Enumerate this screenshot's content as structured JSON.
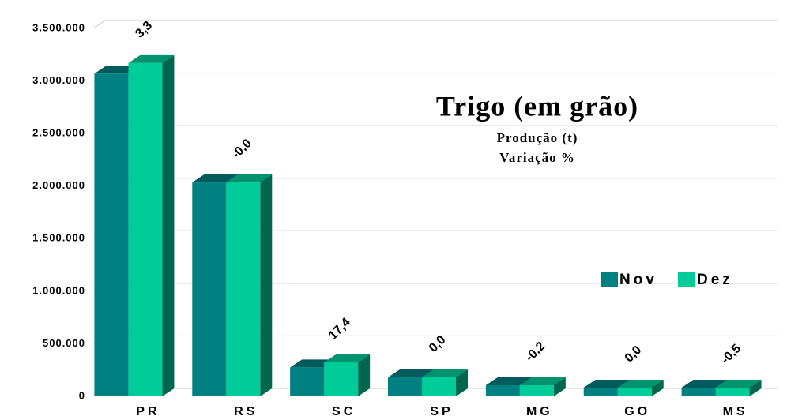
{
  "chart_data": {
    "type": "bar3d",
    "title": "Trigo (em grão)",
    "subtitle": [
      "Produção (t)",
      "Variação %"
    ],
    "categories": [
      "PR",
      "RS",
      "SC",
      "SP",
      "MG",
      "GO",
      "MS"
    ],
    "series": [
      {
        "name": "Nov",
        "color": "#008080",
        "values": [
          3070000,
          2035000,
          275000,
          180000,
          105000,
          83000,
          83000
        ]
      },
      {
        "name": "Dez",
        "color": "#00cc99",
        "values": [
          3170000,
          2035000,
          323000,
          180000,
          105000,
          83000,
          83000
        ]
      }
    ],
    "annotations": [
      "3,3",
      "-0,0",
      "17,4",
      "0,0",
      "-0,2",
      "0,0",
      "-0,5"
    ],
    "ylim": [
      0,
      3500000
    ],
    "yticks": [
      0,
      {
        "value": 500000,
        "label": "500.000"
      },
      {
        "value": 1000000,
        "label": "1.000.000"
      },
      {
        "value": 1500000,
        "label": "1.500.000"
      },
      {
        "value": 2000000,
        "label": "2.000.000"
      },
      {
        "value": 2500000,
        "label": "2.500.000"
      },
      {
        "value": 3000000,
        "label": "3.000.000"
      },
      {
        "value": 3500000,
        "label": "3.500.000"
      }
    ],
    "grid": true
  }
}
